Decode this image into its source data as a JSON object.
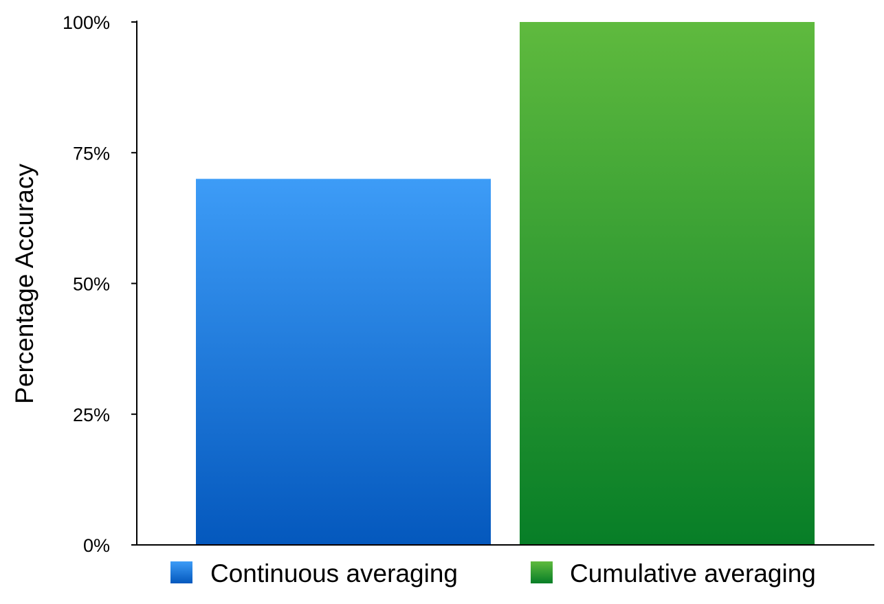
{
  "chart_data": {
    "type": "bar",
    "title": "",
    "xlabel": "",
    "ylabel": "Percentage Accuracy",
    "ylim": [
      0,
      100
    ],
    "y_ticks": [
      0,
      25,
      50,
      75,
      100
    ],
    "y_tick_labels": [
      "0%",
      "25%",
      "50%",
      "75%",
      "100%"
    ],
    "categories": [
      "Continuous averaging",
      "Cumulative averaging"
    ],
    "values": [
      70,
      100
    ],
    "series": [
      {
        "name": "Continuous averaging",
        "value": 70,
        "color_top": "#3d9cf7",
        "color_bottom": "#0458bd"
      },
      {
        "name": "Cumulative averaging",
        "value": 100,
        "color_top": "#5fba3e",
        "color_bottom": "#077e27"
      }
    ],
    "legend": {
      "position": "bottom",
      "entries": [
        "Continuous averaging",
        "Cumulative averaging"
      ]
    },
    "grid": false
  }
}
